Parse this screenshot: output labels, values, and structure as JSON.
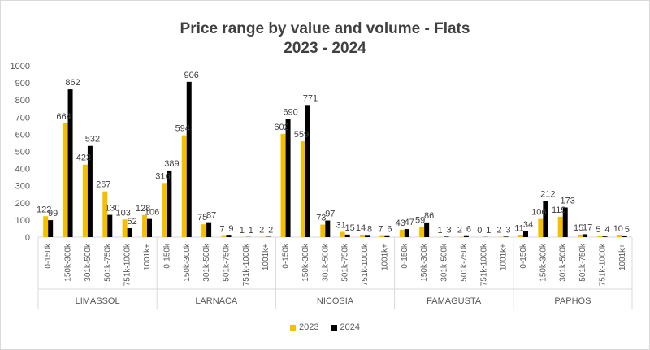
{
  "chart_data": {
    "type": "bar",
    "title": "Price range by value and volume - Flats",
    "subtitle": "2023 - 2024",
    "ylim": [
      0,
      1000
    ],
    "yticks": [
      0,
      100,
      200,
      300,
      400,
      500,
      600,
      700,
      800,
      900,
      1000
    ],
    "price_ranges": [
      "0-150k",
      "150k-300k",
      "301k-500k",
      "501k-750k",
      "751k-1000k",
      "1001k+"
    ],
    "regions": [
      {
        "name": "LIMASSOL",
        "values_2023": [
          122,
          664,
          423,
          267,
          103,
          128
        ],
        "values_2024": [
          99,
          862,
          532,
          130,
          52,
          106
        ]
      },
      {
        "name": "LARNACA",
        "values_2023": [
          316,
          594,
          75,
          7,
          1,
          2
        ],
        "values_2024": [
          389,
          906,
          87,
          9,
          1,
          2
        ]
      },
      {
        "name": "NICOSIA",
        "values_2023": [
          602,
          559,
          73,
          31,
          14,
          7
        ],
        "values_2024": [
          690,
          771,
          97,
          15,
          8,
          6
        ]
      },
      {
        "name": "FAMAGUSTA",
        "values_2023": [
          43,
          59,
          1,
          2,
          0,
          2
        ],
        "values_2024": [
          47,
          86,
          3,
          6,
          1,
          3
        ]
      },
      {
        "name": "PAPHOS",
        "values_2023": [
          11,
          106,
          119,
          15,
          5,
          10
        ],
        "values_2024": [
          34,
          212,
          173,
          17,
          4,
          5
        ]
      }
    ],
    "series": [
      {
        "name": "2023",
        "color": "#f5bf00"
      },
      {
        "name": "2024",
        "color": "#000000"
      }
    ],
    "legend_position": "bottom",
    "grid": false
  }
}
